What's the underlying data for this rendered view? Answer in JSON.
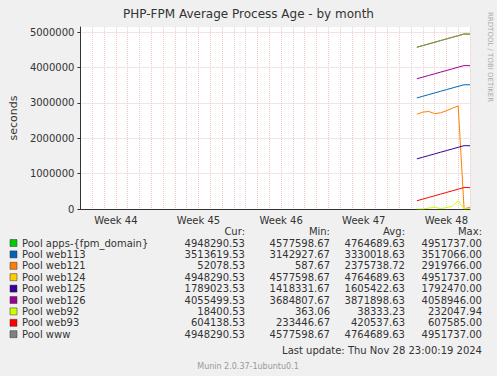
{
  "chart_data": {
    "type": "line",
    "title": "PHP-FPM Average Process Age - by month",
    "y_label": "seconds",
    "categories": [
      null,
      null,
      null,
      null,
      null,
      null,
      "Week 44",
      null,
      null,
      null,
      null,
      null,
      null,
      null,
      null,
      null,
      null,
      null,
      null,
      null,
      "Week 45",
      null,
      null,
      null,
      null,
      null,
      null,
      null,
      null,
      null,
      null,
      null,
      null,
      null,
      "Week 46",
      null,
      null,
      null,
      null,
      null,
      null,
      null,
      null,
      null,
      null,
      null,
      null,
      null,
      "Week 47",
      null,
      null,
      null,
      null,
      null,
      null,
      null,
      null,
      null,
      null,
      null,
      null,
      null,
      "Week 48",
      null,
      null,
      null,
      null
    ],
    "ylim": [
      0,
      5150000
    ],
    "yticks": [
      0,
      1000000,
      2000000,
      3000000,
      4000000,
      5000000
    ],
    "grid": true,
    "legend": "bottom",
    "stats_columns": [
      "Cur:",
      "Min:",
      "Avg:",
      "Max:"
    ],
    "series": [
      {
        "name": "Pool apps-{fpm_domain}",
        "color": "#00cc00",
        "stats": [
          "4948290.53",
          "4577598.67",
          "4764689.63",
          "4951737.00"
        ],
        "values": [
          null,
          null,
          null,
          null,
          null,
          null,
          null,
          null,
          null,
          null,
          null,
          null,
          null,
          null,
          null,
          null,
          null,
          null,
          null,
          null,
          null,
          null,
          null,
          null,
          null,
          null,
          null,
          null,
          null,
          null,
          null,
          null,
          null,
          null,
          null,
          null,
          null,
          null,
          null,
          null,
          null,
          null,
          null,
          null,
          null,
          null,
          null,
          null,
          null,
          null,
          null,
          null,
          null,
          null,
          null,
          null,
          null,
          4577598.67,
          4624366,
          4671133,
          4717900,
          4764668,
          4811435,
          4858202,
          4904970,
          4951737,
          4948290.53
        ]
      },
      {
        "name": "Pool web113",
        "color": "#0066b3",
        "stats": [
          "3513619.53",
          "3142927.67",
          "3330018.63",
          "3517066.00"
        ],
        "values": [
          null,
          null,
          null,
          null,
          null,
          null,
          null,
          null,
          null,
          null,
          null,
          null,
          null,
          null,
          null,
          null,
          null,
          null,
          null,
          null,
          null,
          null,
          null,
          null,
          null,
          null,
          null,
          null,
          null,
          null,
          null,
          null,
          null,
          null,
          null,
          null,
          null,
          null,
          null,
          null,
          null,
          null,
          null,
          null,
          null,
          null,
          null,
          null,
          null,
          null,
          null,
          null,
          null,
          null,
          null,
          null,
          null,
          3142927.67,
          3189695,
          3236462,
          3283229,
          3329997,
          3376764,
          3423531,
          3470299,
          3517066,
          3513619.53
        ]
      },
      {
        "name": "Pool web121",
        "color": "#ff8000",
        "stats": [
          "52078.53",
          "587.67",
          "2375738.72",
          "2919766.00"
        ],
        "values": [
          null,
          null,
          null,
          null,
          null,
          null,
          null,
          null,
          null,
          null,
          null,
          null,
          null,
          null,
          null,
          null,
          null,
          null,
          null,
          null,
          null,
          null,
          null,
          null,
          null,
          null,
          null,
          null,
          null,
          null,
          null,
          null,
          null,
          null,
          null,
          null,
          null,
          null,
          null,
          null,
          null,
          null,
          null,
          null,
          null,
          null,
          null,
          null,
          null,
          null,
          null,
          null,
          null,
          null,
          null,
          null,
          null,
          2680000,
          2740000,
          2760000,
          2700000,
          2720000,
          2780000,
          2850000,
          2919766,
          587.67,
          52078.53
        ]
      },
      {
        "name": "Pool web124",
        "color": "#ffcc00",
        "stats": [
          "4948290.53",
          "4577598.67",
          "4764689.63",
          "4951737.00"
        ],
        "values": [
          null,
          null,
          null,
          null,
          null,
          null,
          null,
          null,
          null,
          null,
          null,
          null,
          null,
          null,
          null,
          null,
          null,
          null,
          null,
          null,
          null,
          null,
          null,
          null,
          null,
          null,
          null,
          null,
          null,
          null,
          null,
          null,
          null,
          null,
          null,
          null,
          null,
          null,
          null,
          null,
          null,
          null,
          null,
          null,
          null,
          null,
          null,
          null,
          null,
          null,
          null,
          null,
          null,
          null,
          null,
          null,
          null,
          4577598.67,
          4624366,
          4671133,
          4717900,
          4764668,
          4811435,
          4858202,
          4904970,
          4951737,
          4948290.53
        ]
      },
      {
        "name": "Pool web125",
        "color": "#330099",
        "stats": [
          "1789023.53",
          "1418331.67",
          "1605422.63",
          "1792470.00"
        ],
        "values": [
          null,
          null,
          null,
          null,
          null,
          null,
          null,
          null,
          null,
          null,
          null,
          null,
          null,
          null,
          null,
          null,
          null,
          null,
          null,
          null,
          null,
          null,
          null,
          null,
          null,
          null,
          null,
          null,
          null,
          null,
          null,
          null,
          null,
          null,
          null,
          null,
          null,
          null,
          null,
          null,
          null,
          null,
          null,
          null,
          null,
          null,
          null,
          null,
          null,
          null,
          null,
          null,
          null,
          null,
          null,
          null,
          null,
          1418331.67,
          1465099,
          1511866,
          1558633,
          1605401,
          1652168,
          1698935,
          1745703,
          1792470,
          1789023.53
        ]
      },
      {
        "name": "Pool web126",
        "color": "#990099",
        "stats": [
          "4055499.53",
          "3684807.67",
          "3871898.63",
          "4058946.00"
        ],
        "values": [
          null,
          null,
          null,
          null,
          null,
          null,
          null,
          null,
          null,
          null,
          null,
          null,
          null,
          null,
          null,
          null,
          null,
          null,
          null,
          null,
          null,
          null,
          null,
          null,
          null,
          null,
          null,
          null,
          null,
          null,
          null,
          null,
          null,
          null,
          null,
          null,
          null,
          null,
          null,
          null,
          null,
          null,
          null,
          null,
          null,
          null,
          null,
          null,
          null,
          null,
          null,
          null,
          null,
          null,
          null,
          null,
          null,
          3684807.67,
          3731575,
          3778342,
          3825109,
          3871877,
          3918644,
          3965411,
          4012179,
          4058946,
          4055499.53
        ]
      },
      {
        "name": "Pool web92",
        "color": "#ccff00",
        "stats": [
          "18400.53",
          "363.06",
          "38333.23",
          "232047.94"
        ],
        "values": [
          null,
          null,
          null,
          null,
          null,
          null,
          null,
          null,
          null,
          null,
          null,
          null,
          null,
          null,
          null,
          null,
          null,
          null,
          null,
          null,
          null,
          null,
          null,
          null,
          null,
          null,
          null,
          null,
          null,
          null,
          null,
          null,
          null,
          null,
          null,
          null,
          null,
          null,
          null,
          null,
          null,
          null,
          null,
          null,
          null,
          null,
          null,
          null,
          null,
          null,
          null,
          null,
          null,
          null,
          null,
          null,
          null,
          1200,
          363.06,
          25000,
          52000,
          12000,
          38000,
          75000,
          232047.94,
          9000,
          18400.53
        ]
      },
      {
        "name": "Pool web93",
        "color": "#ff0000",
        "stats": [
          "604138.53",
          "233446.67",
          "420537.63",
          "607585.00"
        ],
        "values": [
          null,
          null,
          null,
          null,
          null,
          null,
          null,
          null,
          null,
          null,
          null,
          null,
          null,
          null,
          null,
          null,
          null,
          null,
          null,
          null,
          null,
          null,
          null,
          null,
          null,
          null,
          null,
          null,
          null,
          null,
          null,
          null,
          null,
          null,
          null,
          null,
          null,
          null,
          null,
          null,
          null,
          null,
          null,
          null,
          null,
          null,
          null,
          null,
          null,
          null,
          null,
          null,
          null,
          null,
          null,
          null,
          null,
          233446.67,
          280214,
          326981,
          373748,
          420516,
          467283,
          514050,
          560818,
          607585,
          604138.53
        ]
      },
      {
        "name": "Pool www",
        "color": "#808080",
        "stats": [
          "4948290.53",
          "4577598.67",
          "4764689.63",
          "4951737.00"
        ],
        "values": [
          null,
          null,
          null,
          null,
          null,
          null,
          null,
          null,
          null,
          null,
          null,
          null,
          null,
          null,
          null,
          null,
          null,
          null,
          null,
          null,
          null,
          null,
          null,
          null,
          null,
          null,
          null,
          null,
          null,
          null,
          null,
          null,
          null,
          null,
          null,
          null,
          null,
          null,
          null,
          null,
          null,
          null,
          null,
          null,
          null,
          null,
          null,
          null,
          null,
          null,
          null,
          null,
          null,
          null,
          null,
          null,
          null,
          4577598.67,
          4624366,
          4671133,
          4717900,
          4764668,
          4811435,
          4858202,
          4904970,
          4951737,
          4948290.53
        ]
      }
    ],
    "last_update": "Last update: Thu Nov 28 23:00:19 2024",
    "footer": "Munin 2.0.37-1ubuntu0.1",
    "watermark": "RRDTOOL / TOBI OETIKER"
  }
}
